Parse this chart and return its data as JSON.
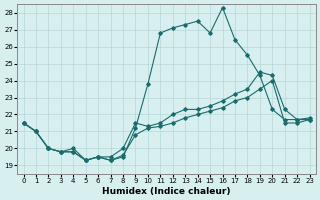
{
  "title": "",
  "xlabel": "Humidex (Indice chaleur)",
  "ylabel": "",
  "xlim": [
    -0.5,
    23.5
  ],
  "ylim": [
    18.5,
    28.5
  ],
  "yticks": [
    19,
    20,
    21,
    22,
    23,
    24,
    25,
    26,
    27,
    28
  ],
  "xticks": [
    0,
    1,
    2,
    3,
    4,
    5,
    6,
    7,
    8,
    9,
    10,
    11,
    12,
    13,
    14,
    15,
    16,
    17,
    18,
    19,
    20,
    21,
    22,
    23
  ],
  "bg_color": "#d8eff0",
  "grid_color": "#b8d8d8",
  "line_color": "#1a6b6b",
  "line1_x": [
    0,
    1,
    2,
    3,
    4,
    5,
    6,
    7,
    8,
    9,
    10,
    11,
    12,
    13,
    14,
    15,
    16,
    17,
    18,
    19,
    20,
    21,
    22,
    23
  ],
  "line1_y": [
    21.5,
    21.0,
    20.0,
    19.8,
    20.0,
    19.3,
    19.5,
    19.3,
    19.6,
    20.8,
    21.2,
    21.3,
    21.5,
    21.8,
    22.0,
    22.2,
    22.4,
    22.8,
    23.0,
    23.5,
    24.0,
    21.5,
    21.5,
    21.7
  ],
  "line2_x": [
    0,
    1,
    2,
    3,
    4,
    5,
    6,
    7,
    8,
    9,
    10,
    11,
    12,
    13,
    14,
    15,
    16,
    17,
    18,
    19,
    20,
    21,
    22,
    23
  ],
  "line2_y": [
    21.5,
    21.0,
    20.0,
    19.8,
    19.8,
    19.3,
    19.5,
    19.3,
    19.5,
    21.2,
    23.8,
    26.8,
    27.1,
    27.3,
    27.5,
    26.8,
    28.3,
    26.4,
    25.5,
    24.3,
    22.3,
    21.7,
    21.7,
    21.8
  ],
  "line3_x": [
    0,
    1,
    2,
    3,
    4,
    5,
    6,
    7,
    8,
    9,
    10,
    11,
    12,
    13,
    14,
    15,
    16,
    17,
    18,
    19,
    20,
    21,
    22,
    23
  ],
  "line3_y": [
    21.5,
    21.0,
    20.0,
    19.8,
    19.8,
    19.3,
    19.5,
    19.5,
    20.0,
    21.5,
    21.3,
    21.5,
    22.0,
    22.3,
    22.3,
    22.5,
    22.8,
    23.2,
    23.5,
    24.5,
    24.3,
    22.3,
    21.7,
    21.7
  ]
}
